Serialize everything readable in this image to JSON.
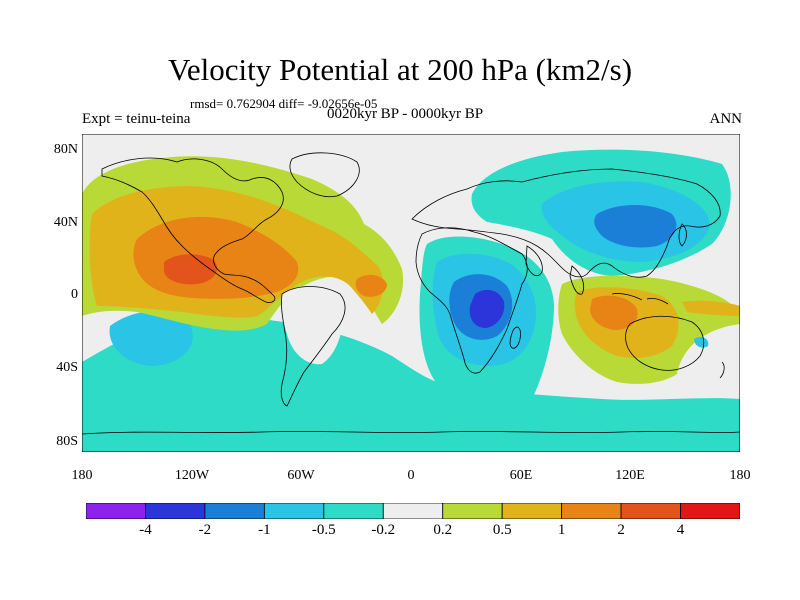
{
  "title": "Velocity Potential at 200 hPa (km2/s)",
  "stats": "rmsd= 0.762904 diff= -9.02656e-05",
  "expt_label": "Expt = teinu-teina",
  "experiment": "0020kyr BP - 0000kyr BP",
  "season": "ANN",
  "lat_labels": [
    "80N",
    "40N",
    "0",
    "40S",
    "80S"
  ],
  "lon_labels": [
    "180",
    "120W",
    "60W",
    "0",
    "60E",
    "120E",
    "180"
  ],
  "colorbar": {
    "colors": [
      "#8d22ee",
      "#2b35da",
      "#1c7fd7",
      "#2ac4e6",
      "#2ddbc6",
      "#eeeeee",
      "#b9d936",
      "#e0b31b",
      "#e78415",
      "#e2541b",
      "#e31616"
    ],
    "labels": [
      "-4",
      "-2",
      "-1",
      "-0.5",
      "-0.2",
      "0.2",
      "0.5",
      "1",
      "2",
      "4"
    ]
  }
}
